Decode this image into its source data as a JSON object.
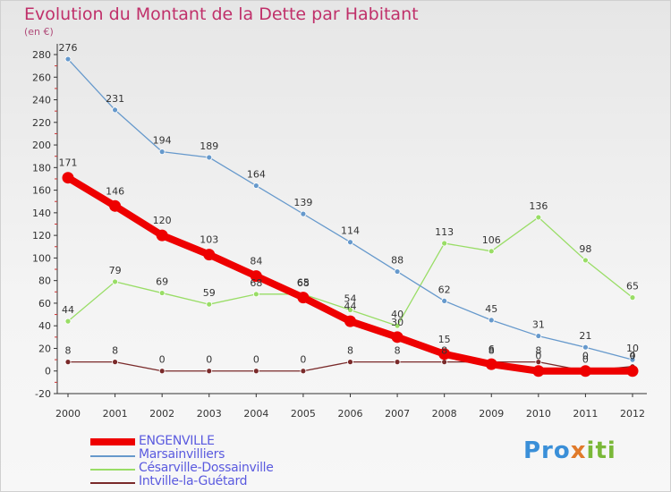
{
  "title": "Evolution du Montant de la Dette par Habitant",
  "unit_label": "(en €)",
  "logo": {
    "text": "Proxiti",
    "parts": [
      "Pro",
      "x",
      "iti"
    ]
  },
  "chart_data": {
    "type": "line",
    "title": "Evolution du Montant de la Dette par Habitant",
    "ylabel": "(en €)",
    "xlabel": "",
    "x": [
      "2000",
      "2001",
      "2002",
      "2003",
      "2004",
      "2005",
      "2006",
      "2007",
      "2008",
      "2009",
      "2010",
      "2011",
      "2012"
    ],
    "ylim": [
      -20,
      280
    ],
    "yticks": [
      -20,
      0,
      20,
      40,
      60,
      80,
      100,
      120,
      140,
      160,
      180,
      200,
      220,
      240,
      260,
      280
    ],
    "grid": false,
    "legend_position": "bottom-left",
    "series": [
      {
        "name": "ENGENVILLE",
        "color": "#ee0000",
        "values": [
          171,
          146,
          120,
          103,
          84,
          65,
          44,
          30,
          15,
          6,
          0,
          0,
          0
        ],
        "labels": [
          "171",
          "146",
          "120",
          "103",
          "84",
          "65",
          "44",
          "30",
          "15",
          "6",
          "0",
          "0",
          "0"
        ]
      },
      {
        "name": "Marsainvilliers",
        "color": "#6699cc",
        "values": [
          276,
          231,
          194,
          189,
          164,
          139,
          114,
          88,
          62,
          45,
          31,
          21,
          10
        ],
        "labels": [
          "276",
          "231",
          "194",
          "189",
          "164",
          "139",
          "114",
          "88",
          "62",
          "45",
          "31",
          "21",
          "10"
        ]
      },
      {
        "name": "Césarville-Dossainville",
        "color": "#99dd66",
        "values": [
          44,
          79,
          69,
          59,
          68,
          68,
          54,
          40,
          113,
          106,
          136,
          98,
          65
        ],
        "labels": [
          "44",
          "79",
          "69",
          "59",
          "68",
          "68",
          "54",
          "40",
          "113",
          "106",
          "136",
          "98",
          "65"
        ]
      },
      {
        "name": "Intville-la-Guétard",
        "color": "#7a2a2a",
        "values": [
          8,
          8,
          0,
          0,
          0,
          0,
          8,
          8,
          8,
          8,
          8,
          0,
          4
        ],
        "labels": [
          "8",
          "8",
          "0",
          "0",
          "0",
          "0",
          "8",
          "8",
          "8",
          "8",
          "8",
          "0",
          "4"
        ]
      }
    ]
  }
}
